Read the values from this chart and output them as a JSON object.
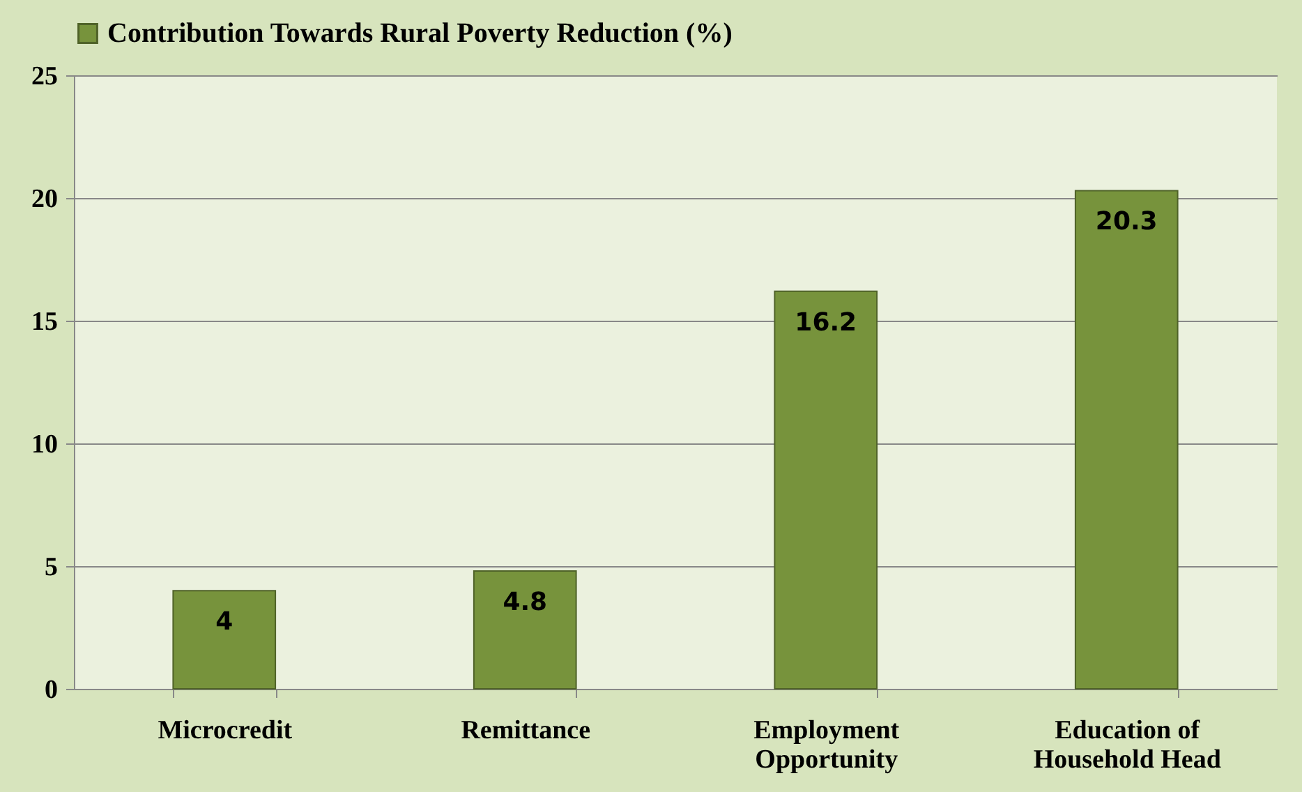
{
  "chart_data": {
    "type": "bar",
    "categories": [
      "Microcredit",
      "Remittance",
      "Employment Opportunity",
      "Education of Household Head"
    ],
    "series": [
      {
        "name": "Contribution Towards Rural Poverty Reduction (%)",
        "color": "#77933c",
        "values": [
          4,
          4.8,
          16.2,
          20.3
        ]
      }
    ],
    "ylim": [
      0,
      25
    ],
    "yticks": [
      0,
      5,
      10,
      15,
      20,
      25
    ],
    "grid": "y",
    "legend": "top",
    "data_labels": true
  }
}
